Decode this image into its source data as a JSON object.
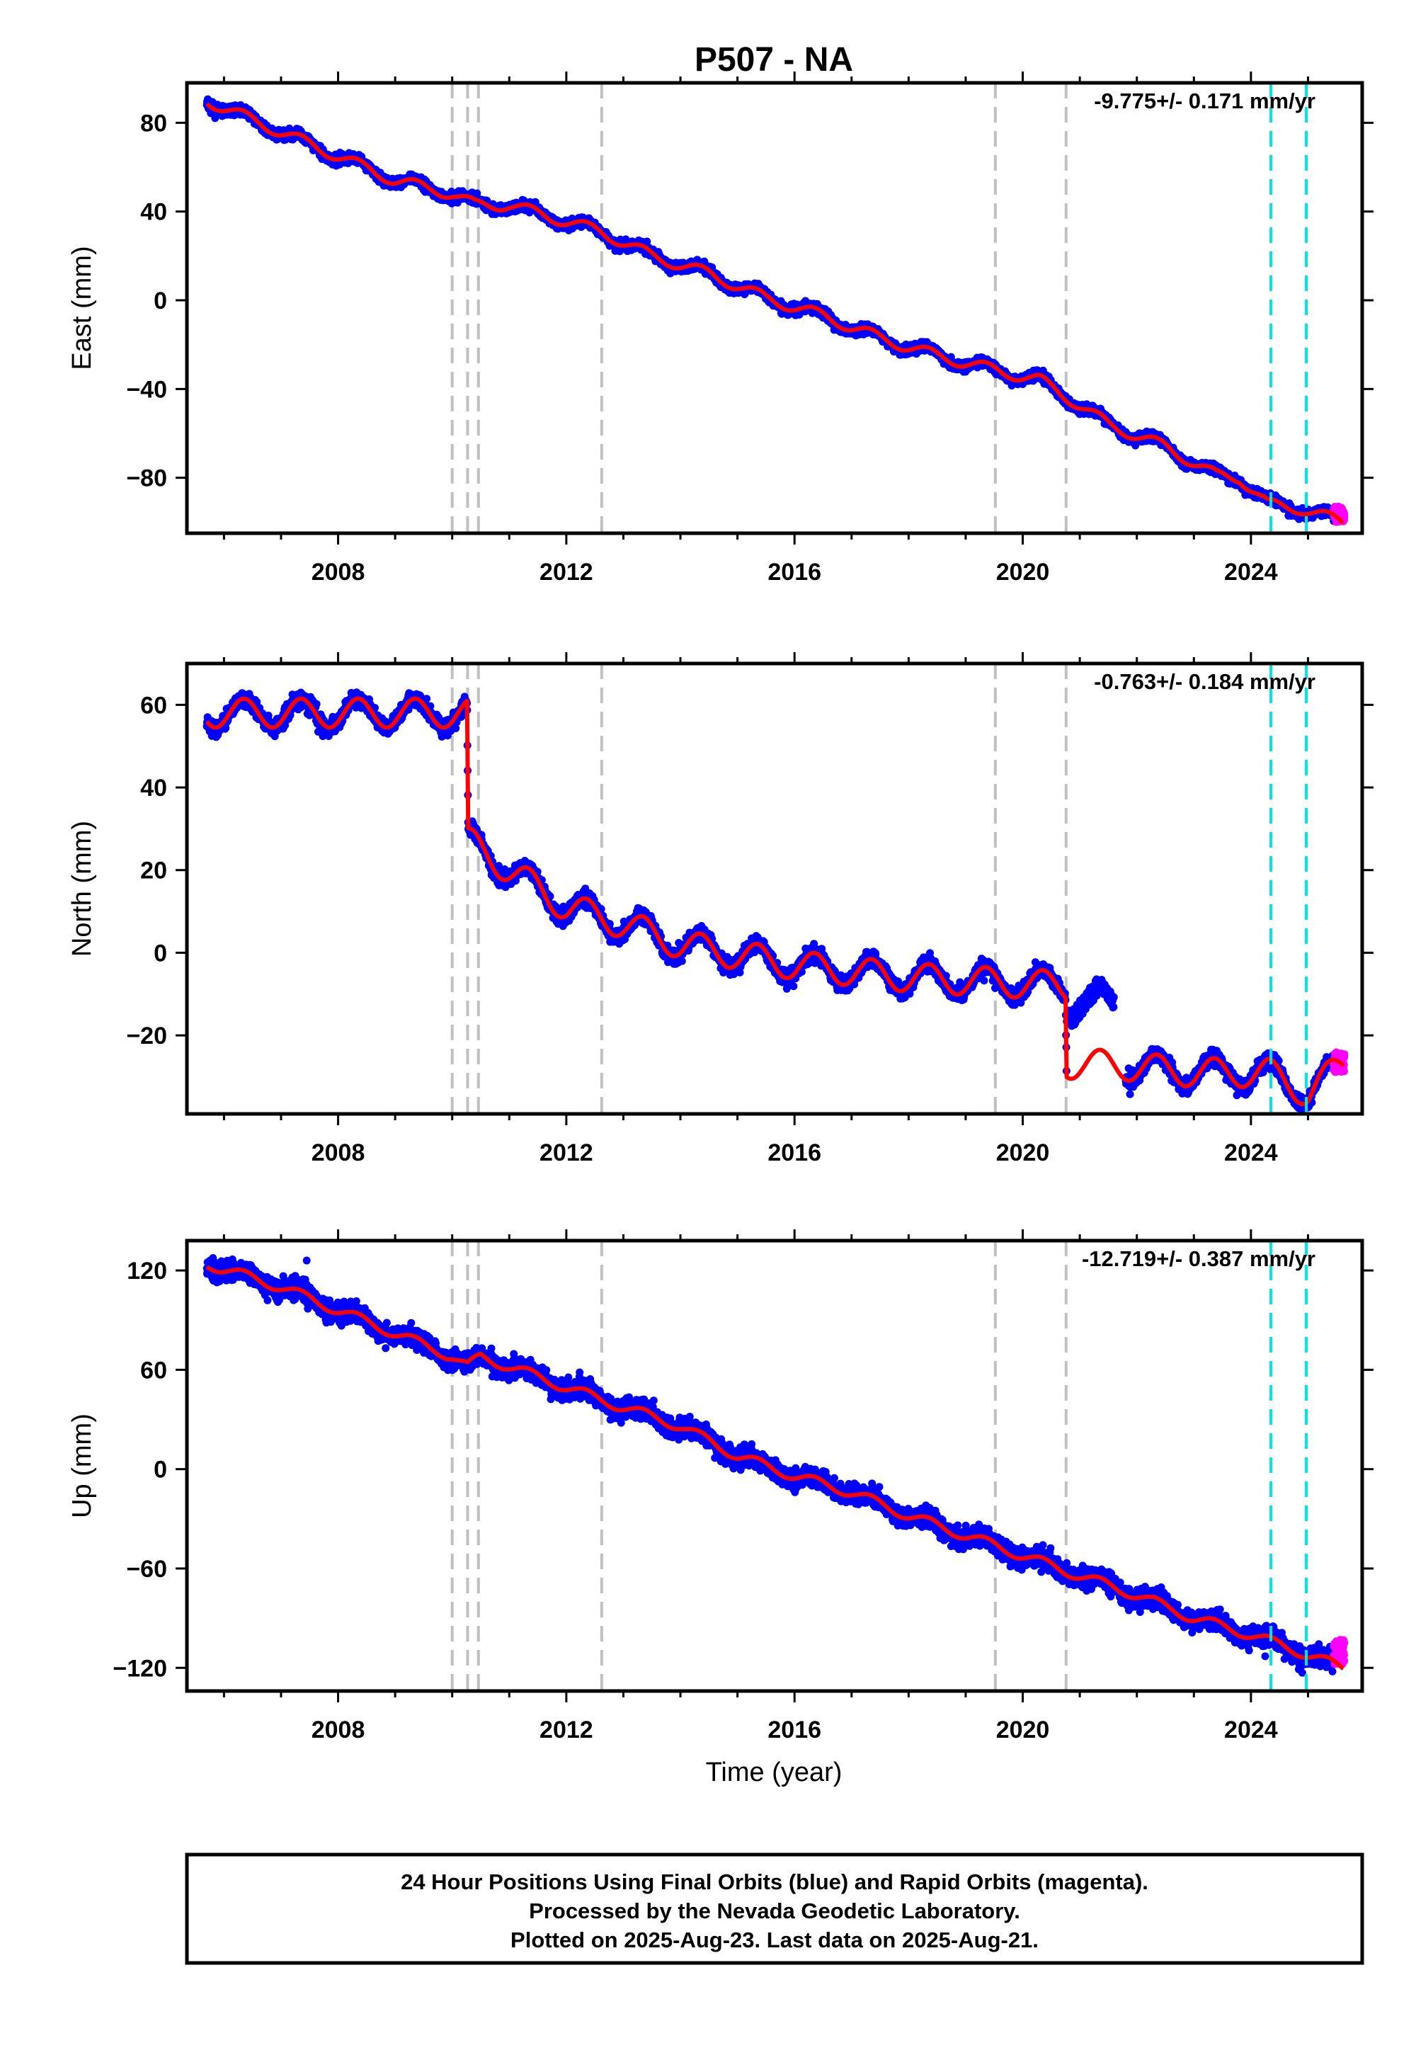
{
  "title": "P507 - NA",
  "xlabel": "Time (year)",
  "footer": {
    "line1": "24 Hour Positions Using Final Orbits (blue) and Rapid Orbits (magenta).",
    "line2": "Processed by the Nevada Geodetic Laboratory.",
    "line3": "Plotted on 2025-Aug-23. Last data on 2025-Aug-21."
  },
  "colors": {
    "final": "#0000ff",
    "rapid": "#ff00ff",
    "model": "#ff0000",
    "equipment_change": "#c0c0c0",
    "earthquake": "#00e5e5",
    "frame": "#000000"
  },
  "chart_data": [
    {
      "type": "scatter",
      "panel": "east",
      "ylabel": "East (mm)",
      "rate_text": "-9.775+/- 0.171 mm/yr",
      "xlim": [
        2005.35,
        2025.95
      ],
      "ylim": [
        -105,
        98
      ],
      "xticks": [
        2008,
        2012,
        2016,
        2020,
        2024
      ],
      "xtick_labels": [
        "2008",
        "2012",
        "2016",
        "2020",
        "2024"
      ],
      "yticks": [
        -80,
        -40,
        0,
        40,
        80
      ],
      "ytick_labels": [
        "−80",
        "−40",
        "0",
        "40",
        "80"
      ],
      "grid": false,
      "steps": [],
      "model": {
        "anchors": [
          [
            2005.7,
            90
          ],
          [
            2009.0,
            54
          ],
          [
            2010.0,
            48
          ],
          [
            2010.4,
            43
          ],
          [
            2011.0,
            43
          ],
          [
            2012.6,
            31
          ],
          [
            2013.5,
            20
          ],
          [
            2014.5,
            12
          ],
          [
            2015.5,
            1
          ],
          [
            2016.5,
            -7
          ],
          [
            2017.5,
            -17
          ],
          [
            2018.5,
            -25
          ],
          [
            2019.6,
            -32
          ],
          [
            2020.3,
            -36
          ],
          [
            2020.8,
            -44
          ],
          [
            2021.5,
            -56
          ],
          [
            2022.5,
            -66
          ],
          [
            2023.4,
            -79
          ],
          [
            2023.8,
            -80
          ],
          [
            2024.3,
            -92
          ],
          [
            2024.9,
            -94
          ],
          [
            2025.6,
            -100
          ]
        ],
        "amp": 2.5
      },
      "data_range": [
        2005.7,
        2025.45
      ],
      "rapid": {
        "range": [
          2025.45,
          2025.64
        ],
        "values": [
          -100,
          -93
        ]
      },
      "noise": 2.0,
      "equipment_changes": [
        2010.0,
        2010.27,
        2010.46,
        2012.62,
        2019.52,
        2020.76
      ],
      "earthquakes": [
        2024.35,
        2024.97
      ]
    },
    {
      "type": "scatter",
      "panel": "north",
      "ylabel": "North (mm)",
      "rate_text": "-0.763+/- 0.184 mm/yr",
      "xlim": [
        2005.35,
        2025.95
      ],
      "ylim": [
        -39,
        70
      ],
      "xticks": [
        2008,
        2012,
        2016,
        2020,
        2024
      ],
      "xtick_labels": [
        "2008",
        "2012",
        "2016",
        "2020",
        "2024"
      ],
      "yticks": [
        -20,
        0,
        20,
        40,
        60
      ],
      "ytick_labels": [
        "−20",
        "0",
        "20",
        "40",
        "60"
      ],
      "grid": false,
      "steps": [
        2010.27,
        2020.76
      ],
      "model": {
        "anchors": [
          [
            2005.7,
            58
          ],
          [
            2010.26,
            58
          ],
          [
            2010.28,
            27
          ],
          [
            2011.0,
            20
          ],
          [
            2012.0,
            11
          ],
          [
            2013.0,
            7
          ],
          [
            2014.0,
            2
          ],
          [
            2016.0,
            -3
          ],
          [
            2018.0,
            -6
          ],
          [
            2020.75,
            -8
          ],
          [
            2020.77,
            -27
          ],
          [
            2021.5,
            -27
          ],
          [
            2023.0,
            -29
          ],
          [
            2024.3,
            -29
          ],
          [
            2025.0,
            -34
          ],
          [
            2025.6,
            -27
          ]
        ],
        "amp": 3.5
      },
      "data_range": [
        2005.7,
        2025.45
      ],
      "gap": [
        2021.6,
        2021.8
      ],
      "offset_segment": {
        "range": [
          2020.77,
          2021.6
        ],
        "shift": 15
      },
      "rapid": {
        "range": [
          2025.45,
          2025.64
        ],
        "values": [
          -29,
          -24
        ]
      },
      "noise": 1.8,
      "equipment_changes": [
        2010.0,
        2010.27,
        2010.46,
        2012.62,
        2019.52,
        2020.76
      ],
      "earthquakes": [
        2024.35,
        2024.97
      ]
    },
    {
      "type": "scatter",
      "panel": "up",
      "ylabel": "Up (mm)",
      "rate_text": "-12.719+/- 0.387 mm/yr",
      "xlim": [
        2005.35,
        2025.95
      ],
      "ylim": [
        -134,
        138
      ],
      "xticks": [
        2008,
        2012,
        2016,
        2020,
        2024
      ],
      "xtick_labels": [
        "2008",
        "2012",
        "2016",
        "2020",
        "2024"
      ],
      "yticks": [
        -120,
        -60,
        0,
        60,
        120
      ],
      "ytick_labels": [
        "−120",
        "−60",
        "0",
        "60",
        "120"
      ],
      "grid": false,
      "steps": [],
      "model": {
        "anchors": [
          [
            2005.7,
            124
          ],
          [
            2007.0,
            110
          ],
          [
            2008.0,
            96
          ],
          [
            2009.0,
            82
          ],
          [
            2010.0,
            68
          ],
          [
            2010.27,
            62
          ],
          [
            2010.5,
            68
          ],
          [
            2011.0,
            62
          ],
          [
            2012.6,
            42
          ],
          [
            2014.0,
            26
          ],
          [
            2015.0,
            8
          ],
          [
            2016.0,
            -4
          ],
          [
            2017.0,
            -14
          ],
          [
            2018.0,
            -28
          ],
          [
            2019.5,
            -46
          ],
          [
            2020.8,
            -62
          ],
          [
            2022.0,
            -76
          ],
          [
            2023.0,
            -90
          ],
          [
            2024.0,
            -100
          ],
          [
            2025.0,
            -112
          ],
          [
            2025.6,
            -120
          ]
        ],
        "amp": 3.0
      },
      "data_range": [
        2005.7,
        2025.45
      ],
      "rapid": {
        "range": [
          2025.45,
          2025.64
        ],
        "values": [
          -118,
          -103
        ]
      },
      "outliers": [
        [
          2007.45,
          126
        ],
        [
          2024.25,
          -113
        ],
        [
          2024.9,
          -123
        ]
      ],
      "noise": 5.5,
      "equipment_changes": [
        2010.0,
        2010.27,
        2010.46,
        2012.62,
        2019.52,
        2020.76
      ],
      "earthquakes": [
        2024.35,
        2024.97
      ]
    }
  ]
}
